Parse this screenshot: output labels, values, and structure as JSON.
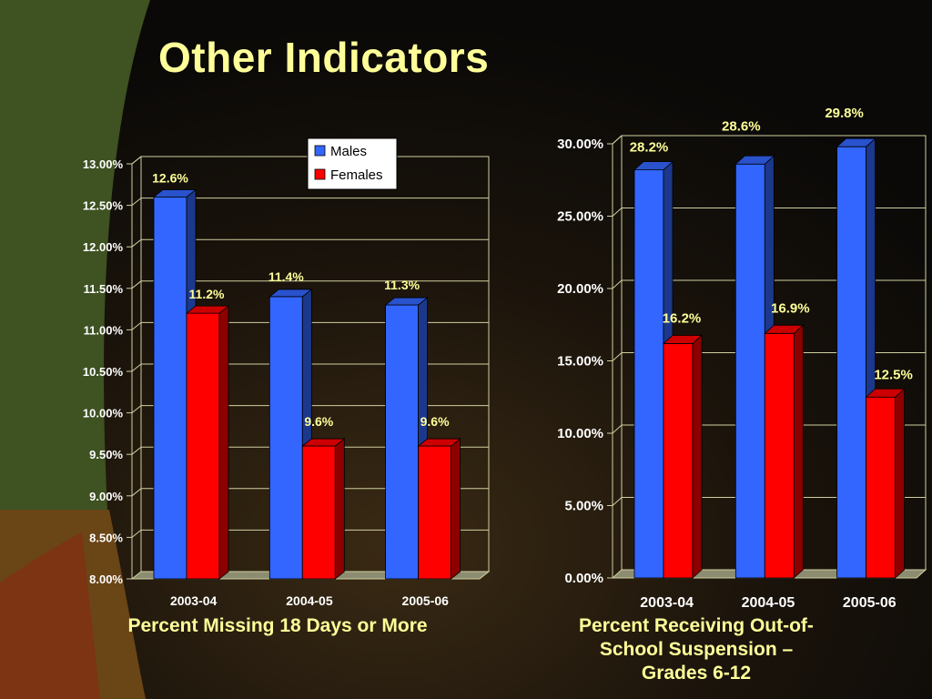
{
  "slide": {
    "title": "Other Indicators"
  },
  "colors": {
    "title": "#ffff99",
    "male": "#3366ff",
    "female": "#ff0000",
    "text": "#ffffff"
  },
  "chart_data": [
    {
      "type": "bar",
      "title": "Percent Missing 18 Days or More",
      "categories": [
        "2003-04",
        "2004-05",
        "2005-06"
      ],
      "series": [
        {
          "name": "Males",
          "values": [
            12.6,
            11.4,
            11.3
          ],
          "labels": [
            "12.6%",
            "11.4%",
            "11.3%"
          ]
        },
        {
          "name": "Females",
          "values": [
            11.2,
            9.6,
            9.6
          ],
          "labels": [
            "11.2%",
            "9.6%",
            "9.6%"
          ]
        }
      ],
      "ylim": [
        8,
        13
      ],
      "yticks": [
        8,
        8.5,
        9,
        9.5,
        10,
        10.5,
        11,
        11.5,
        12,
        12.5,
        13
      ],
      "ytick_labels": [
        "8.00%",
        "8.50%",
        "9.00%",
        "9.50%",
        "10.00%",
        "10.50%",
        "11.00%",
        "11.50%",
        "12.00%",
        "12.50%",
        "13.00%"
      ],
      "legend": true,
      "legend_position": "top-right",
      "grid": true,
      "xlabel": "",
      "ylabel": ""
    },
    {
      "type": "bar",
      "title": "Percent Receiving Out-of-School Suspension – Grades 6-12",
      "title_lines": [
        "Percent Receiving Out-of-",
        "School Suspension –",
        "Grades 6-12"
      ],
      "categories": [
        "2003-04",
        "2004-05",
        "2005-06"
      ],
      "series": [
        {
          "values": [
            28.2,
            28.6,
            29.8
          ],
          "labels": [
            "28.2%",
            "28.6%",
            "29.8%"
          ]
        },
        {
          "values": [
            16.2,
            16.9,
            12.5
          ],
          "labels": [
            "16.2%",
            "16.9%",
            "12.5%"
          ]
        }
      ],
      "ylim": [
        0,
        30
      ],
      "yticks": [
        0,
        5,
        10,
        15,
        20,
        25,
        30
      ],
      "ytick_labels": [
        "0.00%",
        "5.00%",
        "10.00%",
        "15.00%",
        "20.00%",
        "25.00%",
        "30.00%"
      ],
      "legend": false,
      "grid": true,
      "xlabel": "",
      "ylabel": ""
    }
  ]
}
